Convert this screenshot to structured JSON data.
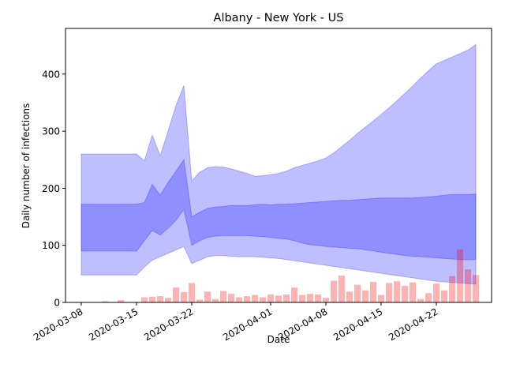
{
  "chart_data": {
    "type": "area",
    "title": "Albany - New York - US",
    "xlabel": "Date",
    "ylabel": "Daily number of infections",
    "xlim": [
      "2020-03-06",
      "2020-04-29"
    ],
    "ylim": [
      0,
      480
    ],
    "grid": false,
    "legend": "none",
    "x_ticks": [
      "2020-03-08",
      "2020-03-15",
      "2020-03-22",
      "2020-04-01",
      "2020-04-08",
      "2020-04-15",
      "2020-04-22"
    ],
    "y_ticks": [
      0,
      100,
      200,
      300,
      400
    ],
    "series": [
      {
        "kind": "band",
        "color": "#0000ff",
        "opacity": 0.25,
        "x": [
          "2020-03-08",
          "2020-03-15",
          "2020-03-16",
          "2020-03-17",
          "2020-03-18",
          "2020-03-19",
          "2020-03-20",
          "2020-03-21",
          "2020-03-22",
          "2020-03-23",
          "2020-03-24",
          "2020-03-25",
          "2020-03-26",
          "2020-03-27",
          "2020-03-28",
          "2020-03-29",
          "2020-03-30",
          "2020-03-31",
          "2020-04-01",
          "2020-04-02",
          "2020-04-03",
          "2020-04-04",
          "2020-04-05",
          "2020-04-06",
          "2020-04-07",
          "2020-04-08",
          "2020-04-09",
          "2020-04-10",
          "2020-04-11",
          "2020-04-12",
          "2020-04-13",
          "2020-04-14",
          "2020-04-15",
          "2020-04-16",
          "2020-04-17",
          "2020-04-18",
          "2020-04-19",
          "2020-04-20",
          "2020-04-21",
          "2020-04-22",
          "2020-04-23",
          "2020-04-24",
          "2020-04-25",
          "2020-04-26",
          "2020-04-27"
        ],
        "upper": [
          260,
          260,
          248,
          293,
          257,
          300,
          345,
          380,
          213,
          228,
          236,
          238,
          237,
          234,
          230,
          226,
          221,
          222,
          224,
          226,
          230,
          236,
          240,
          244,
          248,
          253,
          262,
          273,
          284,
          296,
          307,
          318,
          329,
          341,
          353,
          366,
          379,
          393,
          406,
          418,
          424,
          430,
          436,
          442,
          452
        ],
        "lower": [
          48,
          48,
          62,
          74,
          80,
          86,
          92,
          98,
          68,
          74,
          80,
          82,
          82,
          81,
          80,
          80,
          80,
          79,
          78,
          77,
          75,
          73,
          71,
          69,
          67,
          65,
          63,
          61,
          59,
          57,
          55,
          53,
          51,
          49,
          47,
          45,
          43,
          41,
          39,
          37,
          36,
          35,
          34,
          33,
          32
        ]
      },
      {
        "kind": "band",
        "color": "#0000ff",
        "opacity": 0.25,
        "x": [
          "2020-03-08",
          "2020-03-15",
          "2020-03-16",
          "2020-03-17",
          "2020-03-18",
          "2020-03-19",
          "2020-03-20",
          "2020-03-21",
          "2020-03-22",
          "2020-03-23",
          "2020-03-24",
          "2020-03-25",
          "2020-03-26",
          "2020-03-27",
          "2020-03-28",
          "2020-03-29",
          "2020-03-30",
          "2020-03-31",
          "2020-04-01",
          "2020-04-02",
          "2020-04-03",
          "2020-04-04",
          "2020-04-05",
          "2020-04-06",
          "2020-04-07",
          "2020-04-08",
          "2020-04-09",
          "2020-04-10",
          "2020-04-11",
          "2020-04-12",
          "2020-04-13",
          "2020-04-14",
          "2020-04-15",
          "2020-04-16",
          "2020-04-17",
          "2020-04-18",
          "2020-04-19",
          "2020-04-20",
          "2020-04-21",
          "2020-04-22",
          "2020-04-23",
          "2020-04-24",
          "2020-04-25",
          "2020-04-26",
          "2020-04-27"
        ],
        "upper": [
          172,
          172,
          175,
          207,
          188,
          210,
          230,
          250,
          150,
          158,
          165,
          167,
          168,
          170,
          170,
          170,
          171,
          172,
          171,
          172,
          172,
          173,
          174,
          175,
          176,
          177,
          178,
          179,
          179,
          180,
          181,
          182,
          183,
          183,
          183,
          183,
          183,
          184,
          185,
          186,
          188,
          189,
          189,
          189,
          190
        ],
        "lower": [
          90,
          90,
          108,
          126,
          118,
          130,
          144,
          163,
          100,
          108,
          114,
          116,
          117,
          117,
          117,
          117,
          116,
          115,
          114,
          112,
          111,
          108,
          104,
          101,
          100,
          98,
          97,
          96,
          95,
          94,
          92,
          90,
          88,
          86,
          84,
          82,
          81,
          80,
          79,
          78,
          77,
          76,
          75,
          75,
          75
        ]
      },
      {
        "kind": "bar",
        "color": "#ff0000",
        "opacity": 0.3,
        "x": [
          "2020-03-11",
          "2020-03-13",
          "2020-03-16",
          "2020-03-17",
          "2020-03-18",
          "2020-03-19",
          "2020-03-20",
          "2020-03-21",
          "2020-03-22",
          "2020-03-23",
          "2020-03-24",
          "2020-03-25",
          "2020-03-26",
          "2020-03-27",
          "2020-03-28",
          "2020-03-29",
          "2020-03-30",
          "2020-03-31",
          "2020-04-01",
          "2020-04-02",
          "2020-04-03",
          "2020-04-04",
          "2020-04-05",
          "2020-04-06",
          "2020-04-07",
          "2020-04-08",
          "2020-04-09",
          "2020-04-10",
          "2020-04-11",
          "2020-04-12",
          "2020-04-13",
          "2020-04-14",
          "2020-04-15",
          "2020-04-16",
          "2020-04-17",
          "2020-04-18",
          "2020-04-19",
          "2020-04-20",
          "2020-04-21",
          "2020-04-22",
          "2020-04-23",
          "2020-04-24",
          "2020-04-25",
          "2020-04-26",
          "2020-04-27"
        ],
        "values": [
          2,
          4,
          9,
          10,
          11,
          8,
          26,
          18,
          34,
          5,
          19,
          6,
          20,
          15,
          9,
          11,
          13,
          9,
          14,
          12,
          14,
          26,
          13,
          15,
          14,
          8,
          38,
          47,
          19,
          31,
          21,
          36,
          13,
          34,
          37,
          29,
          35,
          6,
          16,
          33,
          21,
          46,
          93,
          58,
          48
        ]
      }
    ]
  }
}
